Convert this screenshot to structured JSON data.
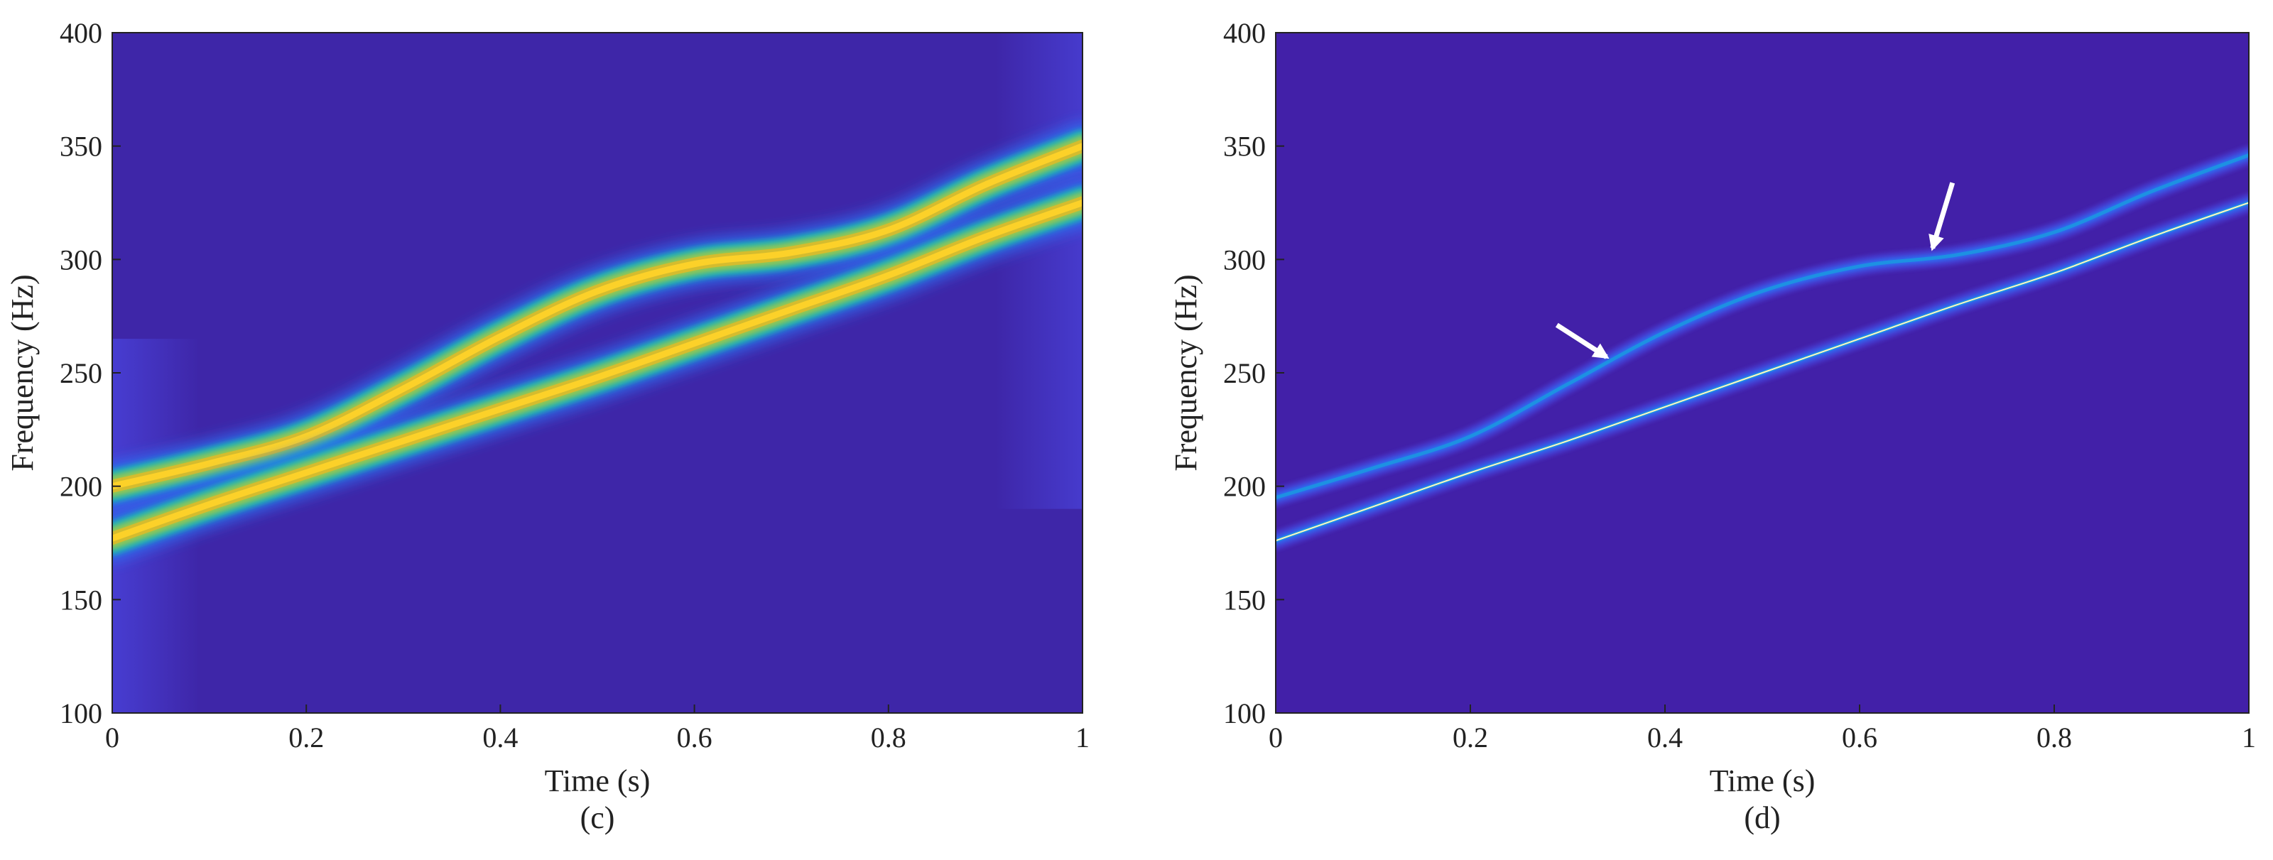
{
  "chart_data": [
    {
      "type": "heatmap",
      "caption": "(c)",
      "xlabel": "Time (s)",
      "ylabel": "Frequency (Hz)",
      "xlim": [
        0,
        1
      ],
      "ylim": [
        100,
        400
      ],
      "xticks": [
        0,
        0.2,
        0.4,
        0.6,
        0.8,
        1
      ],
      "xtick_labels": [
        "0",
        "0.2",
        "0.4",
        "0.6",
        "0.8",
        "1"
      ],
      "yticks": [
        100,
        150,
        200,
        250,
        300,
        350,
        400
      ],
      "ytick_labels": [
        "100",
        "150",
        "200",
        "250",
        "300",
        "350",
        "400"
      ],
      "colormap": "parula",
      "background_color": "#3e26a8",
      "components": [
        {
          "style": "wide",
          "time": [
            0.0,
            0.1,
            0.2,
            0.3,
            0.4,
            0.5,
            0.6,
            0.7,
            0.8,
            0.9,
            1.0
          ],
          "frequency": [
            200,
            210,
            222,
            243,
            266,
            286,
            298,
            303,
            313,
            333,
            350
          ]
        },
        {
          "style": "wide",
          "time": [
            0.0,
            0.1,
            0.2,
            0.3,
            0.4,
            0.5,
            0.6,
            0.7,
            0.8,
            0.9,
            1.0
          ],
          "frequency": [
            177,
            192,
            206,
            220,
            234,
            248,
            263,
            278,
            293,
            310,
            325
          ]
        }
      ],
      "arrows": []
    },
    {
      "type": "heatmap",
      "caption": "(d)",
      "xlabel": "Time (s)",
      "ylabel": "Frequency (Hz)",
      "xlim": [
        0,
        1
      ],
      "ylim": [
        100,
        400
      ],
      "xticks": [
        0,
        0.2,
        0.4,
        0.6,
        0.8,
        1
      ],
      "xtick_labels": [
        "0",
        "0.2",
        "0.4",
        "0.6",
        "0.8",
        "1"
      ],
      "yticks": [
        100,
        150,
        200,
        250,
        300,
        350,
        400
      ],
      "ytick_labels": [
        "100",
        "150",
        "200",
        "250",
        "300",
        "350",
        "400"
      ],
      "colormap": "parula",
      "background_color": "#4220a8",
      "components": [
        {
          "style": "thin",
          "time": [
            0.0,
            0.1,
            0.2,
            0.3,
            0.4,
            0.5,
            0.6,
            0.7,
            0.8,
            0.9,
            1.0
          ],
          "frequency": [
            195,
            208,
            222,
            245,
            268,
            286,
            297,
            302,
            312,
            330,
            346
          ]
        },
        {
          "style": "thin",
          "time": [
            0.0,
            0.1,
            0.2,
            0.3,
            0.4,
            0.5,
            0.6,
            0.7,
            0.8,
            0.9,
            1.0
          ],
          "frequency": [
            176,
            191,
            206,
            220,
            235,
            250,
            265,
            280,
            294,
            310,
            325
          ]
        }
      ],
      "arrows": [
        {
          "time": 0.34,
          "frequency": 257
        },
        {
          "time": 0.675,
          "frequency": 305
        }
      ]
    }
  ],
  "colors": {
    "parula": [
      "#3e26a8",
      "#4840d6",
      "#2f6ff3",
      "#1d91e2",
      "#07a7d1",
      "#17bdb2",
      "#4cc87f",
      "#95c751",
      "#d5bc2e",
      "#fcd129",
      "#f9fb0e"
    ],
    "axis": "#222222",
    "arrow": "#ffffff",
    "thin_ridge": "#fff8c0"
  }
}
